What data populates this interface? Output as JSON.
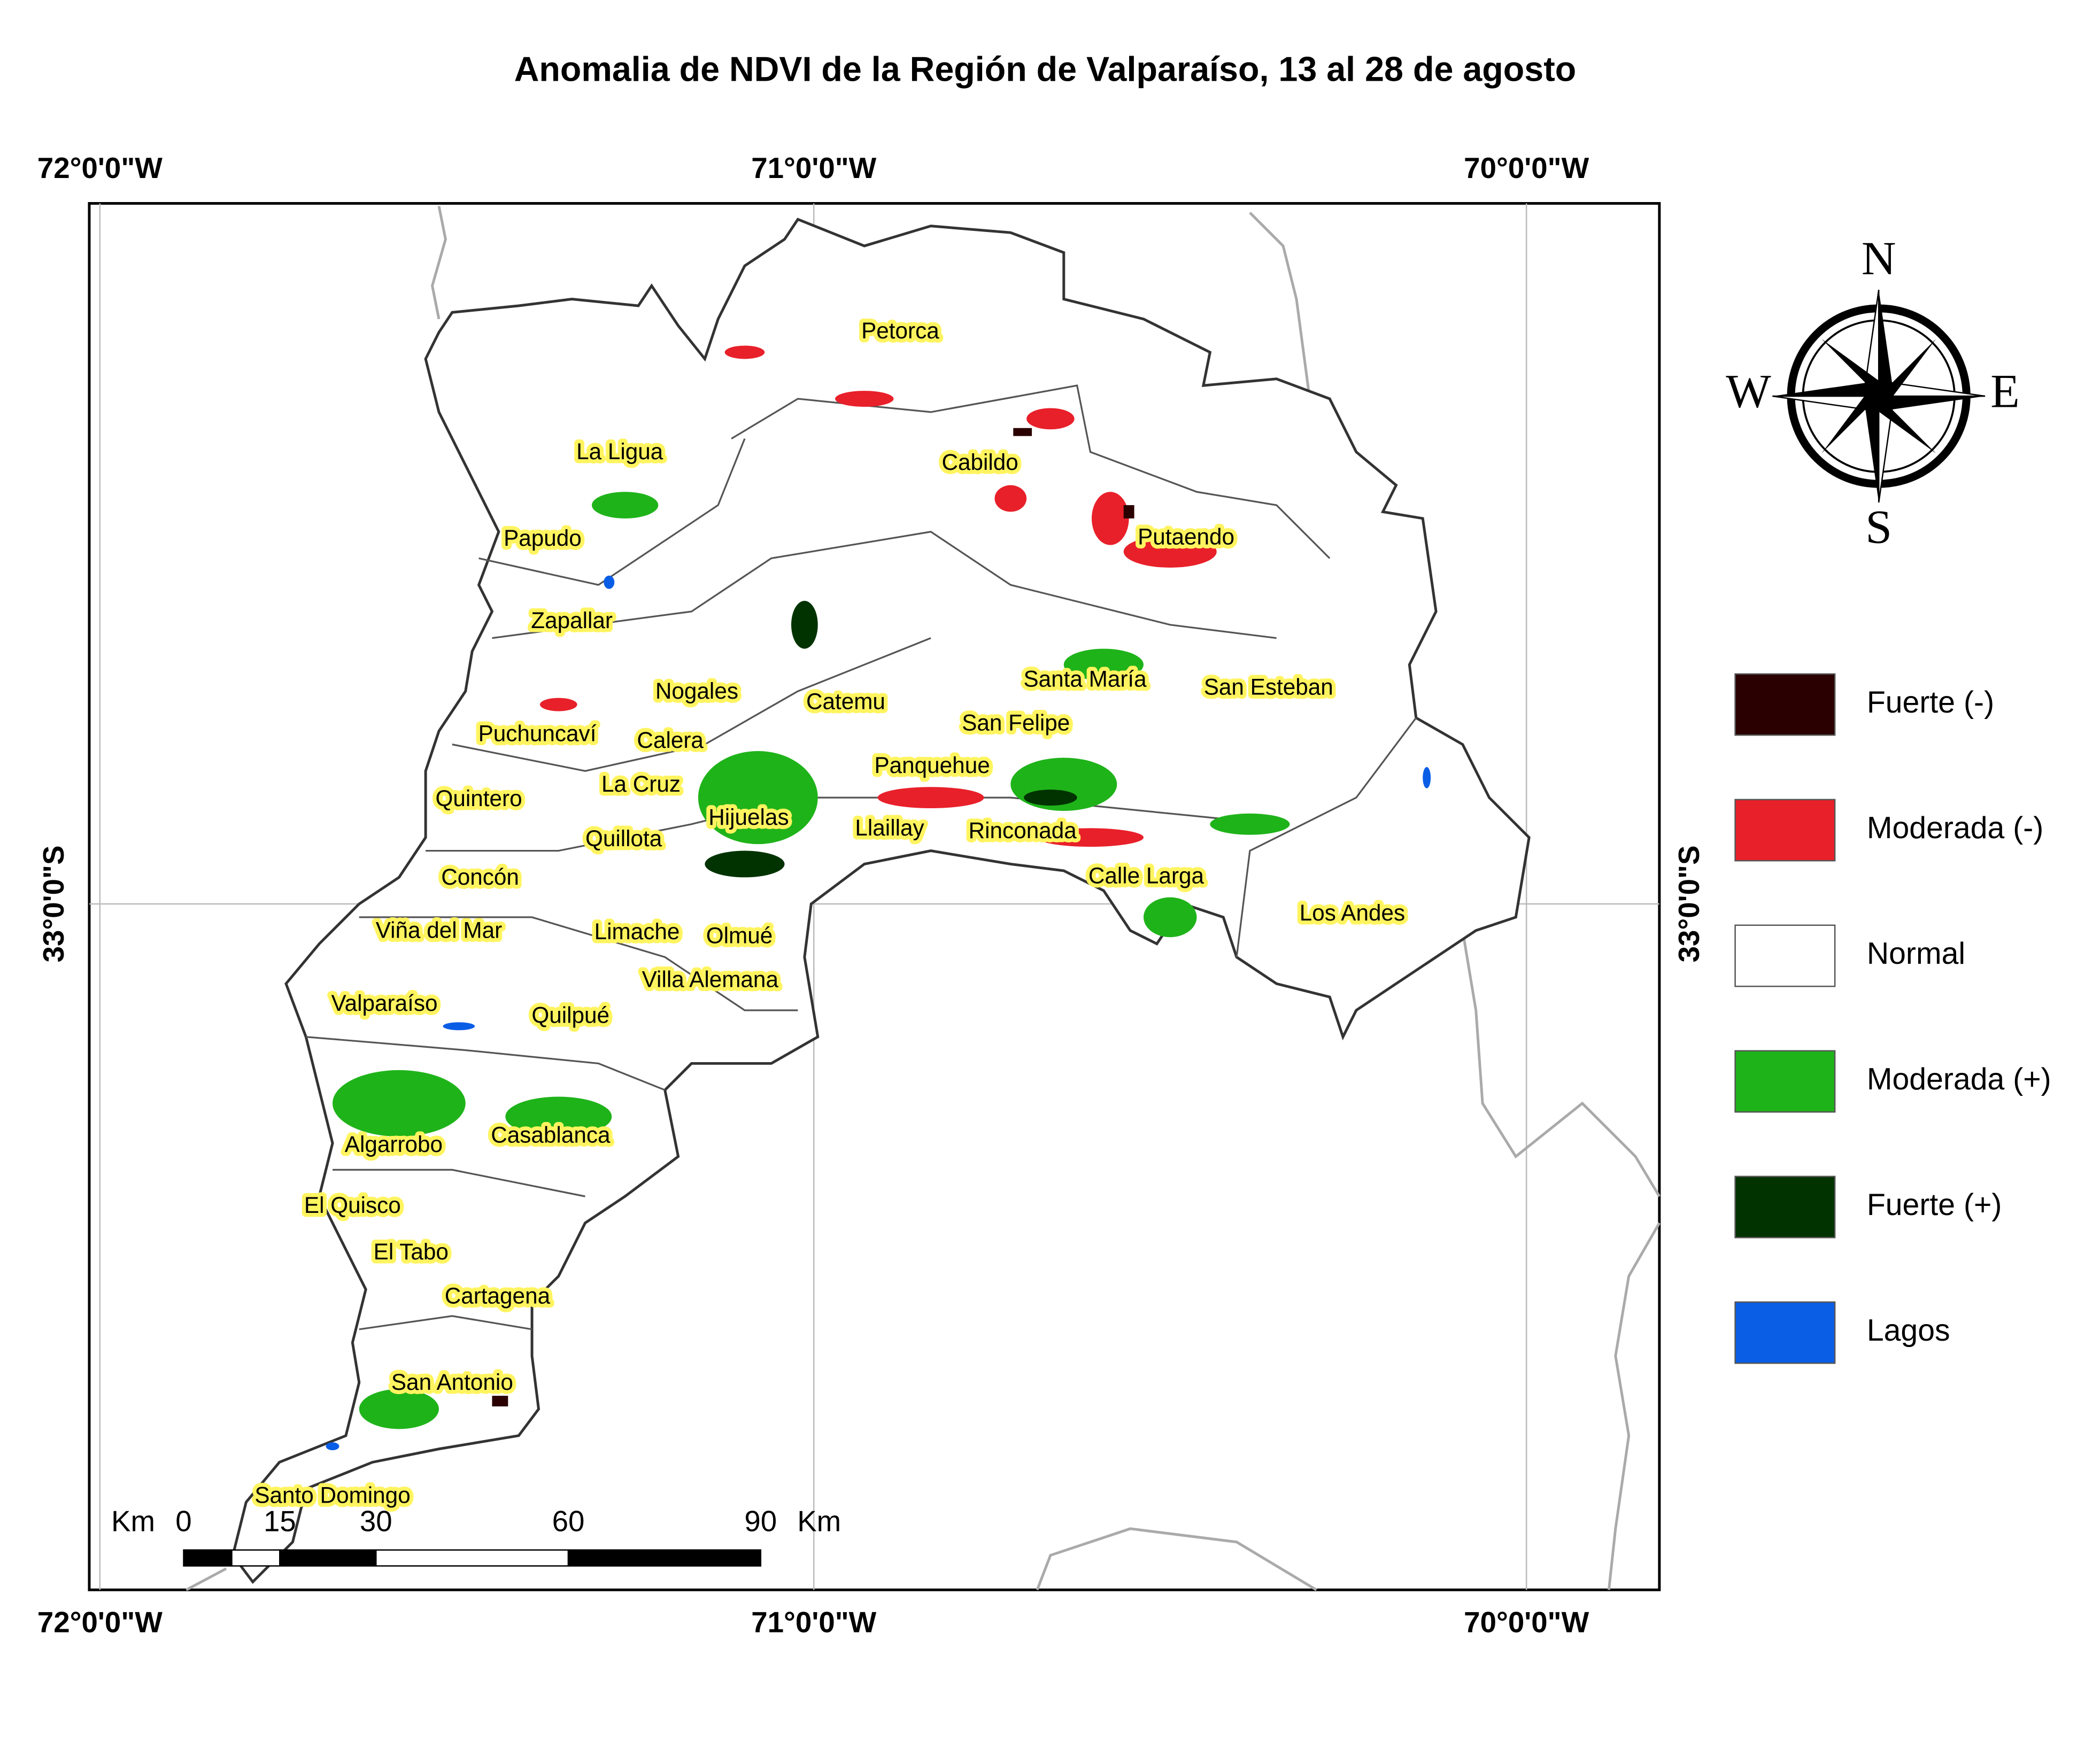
{
  "title": "Anomalia de NDVI de la Región de Valparaíso, 13 al 28 de agosto",
  "graticule": {
    "longitudes": [
      "72°0'0\"W",
      "71°0'0\"W",
      "70°0'0\"W"
    ],
    "latitudes": [
      "33°0'0\"S"
    ]
  },
  "places": [
    "Petorca",
    "La Ligua",
    "Cabildo",
    "Papudo",
    "Putaendo",
    "Zapallar",
    "Nogales",
    "Catemu",
    "Santa María",
    "San Esteban",
    "San Felipe",
    "Puchuncaví",
    "Calera",
    "Panquehue",
    "La Cruz",
    "Quintero",
    "Hijuelas",
    "Llaillay",
    "Rinconada",
    "Quillota",
    "Concón",
    "Calle Larga",
    "Los Andes",
    "Viña del Mar",
    "Limache",
    "Olmué",
    "Villa Alemana",
    "Valparaíso",
    "Quilpué",
    "Casablanca",
    "Algarrobo",
    "El Quisco",
    "El Tabo",
    "Cartagena",
    "San Antonio",
    "Santo Domingo"
  ],
  "legend": [
    {
      "name": "Fuerte (-)",
      "color": "#2b0000"
    },
    {
      "name": "Moderada (-)",
      "color": "#e8202a"
    },
    {
      "name": "Normal",
      "color": "#ffffff"
    },
    {
      "name": "Moderada (+)",
      "color": "#1fb31a"
    },
    {
      "name": "Fuerte (+)",
      "color": "#003300"
    },
    {
      "name": "Lagos",
      "color": "#0a5ee6"
    }
  ],
  "compass": {
    "north": "N",
    "south": "S",
    "east": "E",
    "west": "W"
  },
  "scale_bar": {
    "unit": "Km",
    "ticks": [
      0,
      15,
      30,
      60,
      90
    ]
  }
}
